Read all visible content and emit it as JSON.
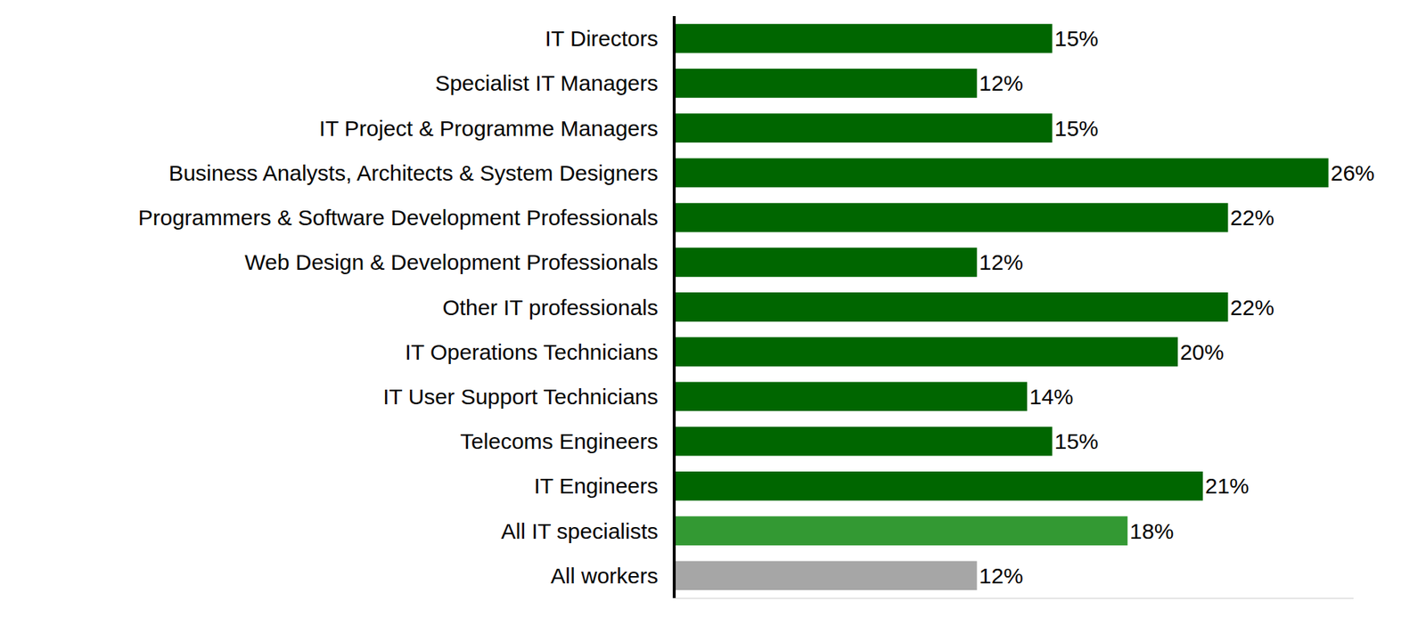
{
  "chart_data": {
    "type": "bar",
    "orientation": "horizontal",
    "categories": [
      "IT Directors",
      "Specialist IT Managers",
      "IT Project & Programme Managers",
      "Business Analysts, Architects & System Designers",
      "Programmers & Software Development Professionals",
      "Web Design & Development Professionals",
      "Other IT professionals",
      "IT Operations Technicians",
      "IT User Support Technicians",
      "Telecoms Engineers",
      "IT Engineers",
      "All IT specialists",
      "All workers"
    ],
    "values": [
      15,
      12,
      15,
      26,
      22,
      12,
      22,
      20,
      14,
      15,
      21,
      18,
      12
    ],
    "value_labels": [
      "15%",
      "12%",
      "15%",
      "26%",
      "22%",
      "12%",
      "22%",
      "20%",
      "14%",
      "15%",
      "21%",
      "18%",
      "12%"
    ],
    "colors": [
      "#006600",
      "#006600",
      "#006600",
      "#006600",
      "#006600",
      "#006600",
      "#006600",
      "#006600",
      "#006600",
      "#006600",
      "#006600",
      "#339933",
      "#a6a6a6"
    ],
    "xlim": [
      0,
      27
    ],
    "data_labels": true,
    "tick_labels": "y",
    "grid": false
  }
}
